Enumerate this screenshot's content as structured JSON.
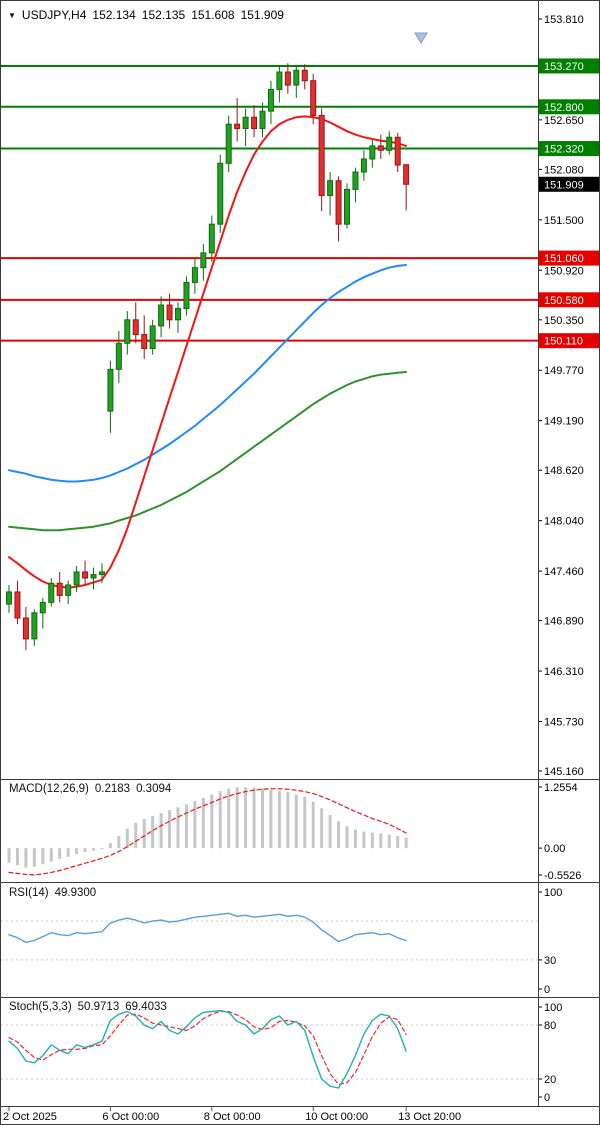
{
  "header": {
    "symbol": "USDJPY,H4",
    "open": "152.134",
    "high": "152.135",
    "low": "151.608",
    "close": "151.909"
  },
  "colors": {
    "bull": "#22a022",
    "bull_border": "#0f6b0f",
    "bear": "#e03030",
    "bear_border": "#9c1414",
    "ma_red": "#f21616",
    "ma_blue": "#2288ff",
    "ma_green": "#2d932d",
    "level_resistance": "#008000",
    "level_support": "#e60000",
    "current_price_bg": "#000000",
    "macd_hist": "#c6c6c6",
    "macd_signal": "#f21616",
    "rsi_line": "#55a0d7",
    "stoch_k": "#20b2aa",
    "stoch_d": "#ff2020"
  },
  "chart_data": {
    "type": "candlestick",
    "symbol": "USDJPY",
    "timeframe": "H4",
    "price_axis": {
      "ticks": [
        "153.810",
        "152.650",
        "152.080",
        "151.500",
        "150.920",
        "150.350",
        "149.770",
        "149.190",
        "148.620",
        "148.040",
        "147.460",
        "146.890",
        "146.310",
        "145.730",
        "145.160"
      ]
    },
    "x_axis": {
      "labels": [
        {
          "index": 0,
          "text": "2 Oct 2025"
        },
        {
          "index": 12,
          "text": "6 Oct 00:00"
        },
        {
          "index": 24,
          "text": "8 Oct 00:00"
        },
        {
          "index": 36,
          "text": "10 Oct 00:00"
        },
        {
          "index": 47,
          "text": "13 Oct 20:00"
        }
      ]
    },
    "levels": {
      "resistance": [
        "153.270",
        "152.800",
        "152.320"
      ],
      "support": [
        "151.060",
        "150.580",
        "150.110"
      ]
    },
    "current_price": "151.909",
    "candles": [
      [
        147.08,
        147.3,
        146.98,
        147.22
      ],
      [
        147.22,
        147.35,
        146.85,
        146.92
      ],
      [
        146.92,
        147.05,
        146.55,
        146.68
      ],
      [
        146.68,
        147.02,
        146.6,
        146.98
      ],
      [
        146.98,
        147.15,
        146.8,
        147.1
      ],
      [
        147.1,
        147.38,
        147.05,
        147.32
      ],
      [
        147.32,
        147.45,
        147.1,
        147.18
      ],
      [
        147.18,
        147.35,
        147.08,
        147.3
      ],
      [
        147.3,
        147.52,
        147.22,
        147.45
      ],
      [
        147.45,
        147.58,
        147.3,
        147.38
      ],
      [
        147.38,
        147.5,
        147.25,
        147.42
      ],
      [
        147.42,
        147.55,
        147.32,
        147.45
      ],
      [
        149.3,
        149.88,
        149.05,
        149.78
      ],
      [
        149.78,
        150.22,
        149.62,
        150.08
      ],
      [
        150.08,
        150.45,
        149.95,
        150.35
      ],
      [
        150.35,
        150.55,
        150.08,
        150.18
      ],
      [
        150.18,
        150.4,
        149.9,
        150.02
      ],
      [
        150.02,
        150.35,
        149.95,
        150.28
      ],
      [
        150.28,
        150.62,
        150.15,
        150.52
      ],
      [
        150.52,
        150.65,
        150.25,
        150.35
      ],
      [
        150.35,
        150.55,
        150.2,
        150.48
      ],
      [
        150.48,
        150.85,
        150.4,
        150.78
      ],
      [
        150.78,
        151.05,
        150.65,
        150.95
      ],
      [
        150.95,
        151.22,
        150.8,
        151.12
      ],
      [
        151.12,
        151.55,
        151.02,
        151.45
      ],
      [
        151.45,
        152.25,
        151.35,
        152.15
      ],
      [
        152.15,
        152.7,
        152.05,
        152.6
      ],
      [
        152.6,
        152.9,
        152.4,
        152.55
      ],
      [
        152.55,
        152.78,
        152.35,
        152.68
      ],
      [
        152.68,
        152.82,
        152.45,
        152.55
      ],
      [
        152.55,
        152.85,
        152.45,
        152.75
      ],
      [
        152.75,
        153.1,
        152.6,
        153.0
      ],
      [
        153.0,
        153.28,
        152.85,
        153.2
      ],
      [
        153.2,
        153.3,
        152.95,
        153.05
      ],
      [
        153.05,
        153.27,
        152.9,
        153.22
      ],
      [
        153.22,
        153.29,
        153.0,
        153.1
      ],
      [
        153.1,
        153.18,
        152.6,
        152.7
      ],
      [
        152.7,
        152.78,
        151.6,
        151.78
      ],
      [
        151.78,
        152.05,
        151.55,
        151.95
      ],
      [
        151.95,
        152.0,
        151.25,
        151.45
      ],
      [
        151.45,
        151.92,
        151.4,
        151.85
      ],
      [
        151.85,
        152.1,
        151.7,
        152.05
      ],
      [
        152.05,
        152.3,
        151.95,
        152.2
      ],
      [
        152.2,
        152.42,
        152.1,
        152.35
      ],
      [
        152.35,
        152.48,
        152.2,
        152.3
      ],
      [
        152.3,
        152.52,
        152.25,
        152.45
      ],
      [
        152.45,
        152.5,
        152.05,
        152.13
      ],
      [
        152.134,
        152.135,
        151.608,
        151.909
      ]
    ],
    "ma_red": [
      147.62,
      147.55,
      147.47,
      147.4,
      147.34,
      147.3,
      147.28,
      147.27,
      147.28,
      147.3,
      147.33,
      147.36,
      147.5,
      147.7,
      147.95,
      148.25,
      148.55,
      148.85,
      149.15,
      149.45,
      149.75,
      150.05,
      150.35,
      150.65,
      150.95,
      151.25,
      151.55,
      151.82,
      152.05,
      152.25,
      152.4,
      152.52,
      152.6,
      152.65,
      152.68,
      152.69,
      152.68,
      152.66,
      152.62,
      152.57,
      152.52,
      152.48,
      152.45,
      152.43,
      152.41,
      152.4,
      152.38,
      152.35
    ],
    "ma_blue": [
      148.62,
      148.6,
      148.58,
      148.55,
      148.53,
      148.51,
      148.5,
      148.49,
      148.49,
      148.5,
      148.51,
      148.53,
      148.56,
      148.6,
      148.64,
      148.69,
      148.74,
      148.8,
      148.86,
      148.92,
      148.99,
      149.06,
      149.13,
      149.21,
      149.29,
      149.37,
      149.46,
      149.55,
      149.64,
      149.73,
      149.83,
      149.93,
      150.03,
      150.13,
      150.23,
      150.33,
      150.43,
      150.52,
      150.6,
      150.67,
      150.73,
      150.79,
      150.84,
      150.88,
      150.92,
      150.95,
      150.97,
      150.98
    ],
    "ma_green": [
      147.97,
      147.96,
      147.95,
      147.94,
      147.93,
      147.93,
      147.93,
      147.94,
      147.95,
      147.96,
      147.97,
      147.99,
      148.01,
      148.04,
      148.07,
      148.1,
      148.14,
      148.18,
      148.22,
      148.27,
      148.32,
      148.37,
      148.43,
      148.49,
      148.55,
      148.61,
      148.68,
      148.75,
      148.82,
      148.89,
      148.96,
      149.03,
      149.1,
      149.17,
      149.24,
      149.31,
      149.38,
      149.44,
      149.5,
      149.55,
      149.6,
      149.64,
      149.67,
      149.7,
      149.72,
      149.73,
      149.74,
      149.75
    ],
    "macd": {
      "label": "MACD(12,26,9)",
      "value_main": "0.2183",
      "value_signal": "0.3094",
      "ticks": [
        "1.2554",
        "0.00",
        "-0.5526"
      ],
      "range": [
        -0.5526,
        1.2554
      ],
      "main": [
        -0.3,
        -0.35,
        -0.4,
        -0.38,
        -0.33,
        -0.28,
        -0.22,
        -0.18,
        -0.12,
        -0.08,
        -0.05,
        -0.02,
        0.1,
        0.25,
        0.4,
        0.52,
        0.6,
        0.66,
        0.72,
        0.78,
        0.84,
        0.9,
        0.97,
        1.03,
        1.1,
        1.17,
        1.22,
        1.25,
        1.25,
        1.24,
        1.22,
        1.2,
        1.18,
        1.15,
        1.1,
        1.05,
        0.95,
        0.82,
        0.68,
        0.55,
        0.45,
        0.38,
        0.34,
        0.32,
        0.3,
        0.28,
        0.25,
        0.2183
      ],
      "signal": [
        -0.5,
        -0.52,
        -0.54,
        -0.55,
        -0.53,
        -0.5,
        -0.46,
        -0.41,
        -0.36,
        -0.31,
        -0.26,
        -0.21,
        -0.15,
        -0.07,
        0.03,
        0.14,
        0.25,
        0.36,
        0.46,
        0.55,
        0.64,
        0.72,
        0.8,
        0.87,
        0.94,
        1.01,
        1.07,
        1.12,
        1.16,
        1.19,
        1.21,
        1.22,
        1.22,
        1.21,
        1.19,
        1.16,
        1.12,
        1.06,
        0.99,
        0.91,
        0.83,
        0.75,
        0.68,
        0.61,
        0.55,
        0.49,
        0.4,
        0.3094
      ]
    },
    "rsi": {
      "label": "RSI(14)",
      "value": "49.9300",
      "ticks": [
        "100",
        "30",
        "0"
      ],
      "levels": [
        30,
        70
      ],
      "range": [
        0,
        100
      ],
      "series": [
        56,
        53,
        48,
        50,
        54,
        58,
        56,
        55,
        58,
        57,
        58,
        59,
        68,
        71,
        73,
        71,
        68,
        70,
        71,
        69,
        70,
        72,
        74,
        75,
        76,
        77,
        78,
        75,
        76,
        74,
        75,
        76,
        77,
        75,
        76,
        74,
        69,
        61,
        55,
        49,
        52,
        56,
        57,
        58,
        56,
        57,
        53,
        49.93
      ]
    },
    "stoch": {
      "label": "Stoch(5,3,3)",
      "value_k": "50.9713",
      "value_d": "69.4033",
      "ticks": [
        "100",
        "80",
        "20",
        "0"
      ],
      "levels": [
        20,
        80
      ],
      "range": [
        0,
        100
      ],
      "k": [
        62,
        54,
        40,
        38,
        46,
        58,
        52,
        48,
        58,
        55,
        58,
        62,
        85,
        92,
        95,
        90,
        80,
        76,
        84,
        74,
        70,
        78,
        88,
        94,
        95,
        96,
        94,
        84,
        80,
        70,
        76,
        86,
        90,
        80,
        84,
        74,
        45,
        20,
        12,
        10,
        26,
        46,
        70,
        85,
        92,
        90,
        76,
        50.97
      ],
      "d": [
        66,
        61,
        52,
        44,
        41,
        47,
        52,
        53,
        53,
        54,
        57,
        58,
        68,
        80,
        91,
        92,
        88,
        82,
        80,
        78,
        76,
        74,
        79,
        87,
        92,
        95,
        95,
        91,
        86,
        78,
        75,
        77,
        84,
        85,
        83,
        79,
        68,
        46,
        26,
        14,
        16,
        27,
        47,
        67,
        82,
        89,
        86,
        69.4
      ]
    }
  }
}
